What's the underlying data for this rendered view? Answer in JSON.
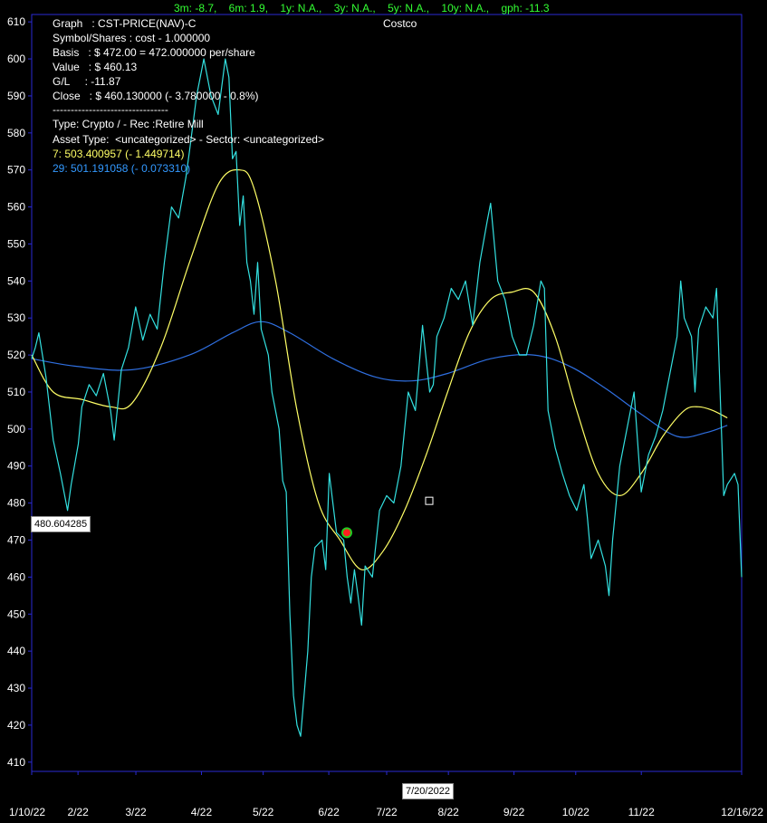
{
  "stats_bar": "3m: -8.7,    6m: 1.9,    1y: N.A.,    3y: N.A.,    5y: N.A.,    10y: N.A.,    gph: -11.3",
  "title": "Costco",
  "info": {
    "graph": "Graph   : CST-PRICE(NAV)-C",
    "symbol": "Symbol/Shares : cost - 1.000000",
    "basis": "Basis   : $ 472.00 = 472.000000 per/share",
    "value": "Value   : $ 460.13",
    "gl": "G/L     : -11.87",
    "close": "Close   : $ 460.130000 (- 3.780000 - 0.8%)",
    "separator": "--------------------------------",
    "type": "Type: Crypto / - Rec :Retire Mill",
    "asset": "Asset Type:  <uncategorized> - Sector: <uncategorized>",
    "ma7": "7: 503.400957 (- 1.449714)",
    "ma29": "29: 501.191058 (- 0.073310)"
  },
  "cursor": {
    "value_label": "480.604285",
    "date_label": "7/20/2022"
  },
  "colors": {
    "background": "#000000",
    "axis": "#2a2ad4",
    "price": "#33e0e0",
    "ma7": "#ffff66",
    "ma29": "#2f6fe0",
    "stats": "#33ff33"
  },
  "chart_data": {
    "type": "line",
    "y_ticks": [
      410,
      420,
      430,
      440,
      450,
      460,
      470,
      480,
      490,
      500,
      510,
      520,
      530,
      540,
      550,
      560,
      570,
      580,
      590,
      600,
      610
    ],
    "ylim": [
      407.5,
      612
    ],
    "x_ticks": [
      "1/10/22",
      "2/22",
      "3/22",
      "4/22",
      "5/22",
      "6/22",
      "7/22",
      "8/22",
      "9/22",
      "10/22",
      "11/22",
      "12/16/22"
    ],
    "x_tick_idx": [
      0,
      12,
      27,
      44,
      60,
      77,
      92,
      108,
      125,
      141,
      158,
      184
    ],
    "n_points": 185,
    "price_keypoints": [
      [
        0,
        519
      ],
      [
        1,
        522
      ],
      [
        2,
        526
      ],
      [
        4,
        514
      ],
      [
        6,
        497
      ],
      [
        8,
        488
      ],
      [
        10,
        478
      ],
      [
        11,
        485
      ],
      [
        13,
        496
      ],
      [
        14,
        506
      ],
      [
        16,
        512
      ],
      [
        18,
        509
      ],
      [
        20,
        515
      ],
      [
        22,
        505
      ],
      [
        23,
        497
      ],
      [
        25,
        516
      ],
      [
        27,
        522
      ],
      [
        29,
        533
      ],
      [
        31,
        524
      ],
      [
        33,
        531
      ],
      [
        35,
        527
      ],
      [
        37,
        545
      ],
      [
        39,
        560
      ],
      [
        41,
        557
      ],
      [
        43,
        568
      ],
      [
        44,
        575
      ],
      [
        46,
        590
      ],
      [
        48,
        600
      ],
      [
        50,
        590
      ],
      [
        52,
        585
      ],
      [
        54,
        600
      ],
      [
        55,
        595
      ],
      [
        56,
        573
      ],
      [
        57,
        575
      ],
      [
        58,
        555
      ],
      [
        59,
        563
      ],
      [
        60,
        545
      ],
      [
        61,
        540
      ],
      [
        62,
        531
      ],
      [
        63,
        545
      ],
      [
        64,
        527
      ],
      [
        66,
        520
      ],
      [
        67,
        510
      ],
      [
        69,
        500
      ],
      [
        70,
        486
      ],
      [
        71,
        483
      ],
      [
        72,
        450
      ],
      [
        73,
        428
      ],
      [
        74,
        420
      ],
      [
        75,
        417
      ],
      [
        77,
        440
      ],
      [
        78,
        460
      ],
      [
        79,
        468
      ],
      [
        81,
        470
      ],
      [
        82,
        462
      ],
      [
        83,
        488
      ],
      [
        85,
        472
      ],
      [
        87,
        470
      ],
      [
        88,
        460
      ],
      [
        89,
        453
      ],
      [
        90,
        462
      ],
      [
        91,
        455
      ],
      [
        92,
        447
      ],
      [
        93,
        463
      ],
      [
        95,
        460
      ],
      [
        97,
        478
      ],
      [
        99,
        482
      ],
      [
        101,
        480
      ],
      [
        103,
        490
      ],
      [
        105,
        510
      ],
      [
        107,
        505
      ],
      [
        109,
        528
      ],
      [
        111,
        510
      ],
      [
        112,
        512
      ],
      [
        113,
        525
      ],
      [
        115,
        530
      ],
      [
        117,
        538
      ],
      [
        119,
        535
      ],
      [
        121,
        540
      ],
      [
        123,
        528
      ],
      [
        125,
        545
      ],
      [
        127,
        556
      ],
      [
        128,
        561
      ],
      [
        130,
        540
      ],
      [
        132,
        535
      ],
      [
        134,
        525
      ],
      [
        136,
        520
      ],
      [
        138,
        520
      ],
      [
        140,
        528
      ],
      [
        142,
        540
      ],
      [
        143,
        538
      ],
      [
        144,
        505
      ],
      [
        146,
        495
      ],
      [
        148,
        488
      ],
      [
        150,
        482
      ],
      [
        152,
        478
      ],
      [
        154,
        485
      ],
      [
        155,
        476
      ],
      [
        156,
        465
      ],
      [
        158,
        470
      ],
      [
        160,
        463
      ],
      [
        161,
        455
      ],
      [
        162,
        470
      ],
      [
        164,
        490
      ],
      [
        166,
        500
      ],
      [
        168,
        510
      ],
      [
        170,
        483
      ],
      [
        172,
        493
      ],
      [
        174,
        498
      ],
      [
        176,
        505
      ],
      [
        178,
        515
      ],
      [
        180,
        525
      ],
      [
        181,
        540
      ],
      [
        182,
        530
      ],
      [
        184,
        525
      ],
      [
        185,
        510
      ],
      [
        186,
        527
      ],
      [
        188,
        533
      ],
      [
        190,
        530
      ],
      [
        191,
        538
      ],
      [
        192,
        510
      ],
      [
        193,
        482
      ],
      [
        194,
        485
      ],
      [
        196,
        488
      ],
      [
        197,
        485
      ],
      [
        198,
        460
      ]
    ],
    "ma7_keypoints": [
      [
        0,
        520
      ],
      [
        6,
        510
      ],
      [
        14,
        508
      ],
      [
        22,
        506
      ],
      [
        28,
        507
      ],
      [
        36,
        522
      ],
      [
        44,
        545
      ],
      [
        52,
        566
      ],
      [
        58,
        570
      ],
      [
        62,
        565
      ],
      [
        68,
        540
      ],
      [
        74,
        505
      ],
      [
        80,
        480
      ],
      [
        86,
        470
      ],
      [
        92,
        462
      ],
      [
        98,
        467
      ],
      [
        104,
        478
      ],
      [
        110,
        493
      ],
      [
        116,
        510
      ],
      [
        122,
        526
      ],
      [
        128,
        535
      ],
      [
        134,
        537
      ],
      [
        140,
        537
      ],
      [
        146,
        525
      ],
      [
        152,
        505
      ],
      [
        158,
        488
      ],
      [
        164,
        482
      ],
      [
        170,
        488
      ],
      [
        176,
        498
      ],
      [
        182,
        505
      ],
      [
        186,
        506
      ],
      [
        190,
        505
      ],
      [
        194,
        503
      ]
    ],
    "ma29_keypoints": [
      [
        0,
        519
      ],
      [
        12,
        517
      ],
      [
        28,
        516
      ],
      [
        44,
        520
      ],
      [
        56,
        526
      ],
      [
        64,
        529
      ],
      [
        72,
        526
      ],
      [
        84,
        519
      ],
      [
        96,
        514
      ],
      [
        106,
        513
      ],
      [
        116,
        515
      ],
      [
        128,
        519
      ],
      [
        140,
        520
      ],
      [
        150,
        517
      ],
      [
        160,
        511
      ],
      [
        170,
        504
      ],
      [
        180,
        498
      ],
      [
        188,
        499
      ],
      [
        194,
        501
      ]
    ],
    "keypoint_scale_max": 198,
    "basis_marker": {
      "idx": 71,
      "value": 472
    },
    "cursor_marker": {
      "idx": 90,
      "value": 480.6
    }
  }
}
